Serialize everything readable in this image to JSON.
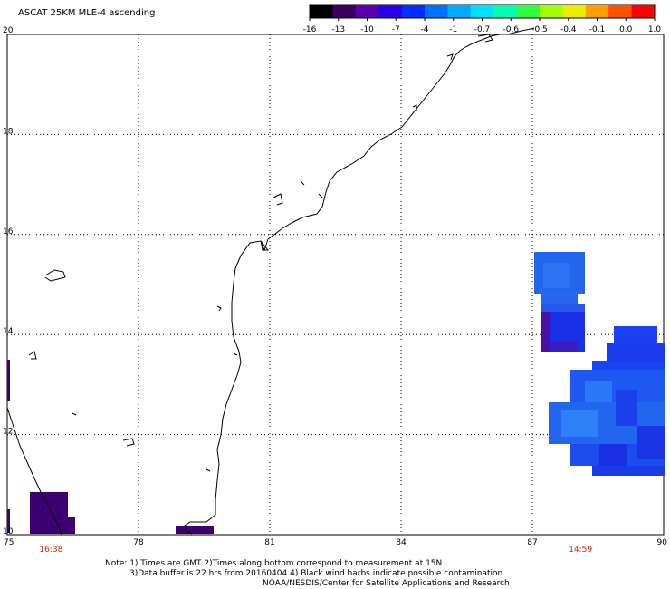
{
  "title": "ASCAT 25KM MLE-4 ascending",
  "colorbar": {
    "labels": [
      "-16",
      "-13",
      "-10",
      "-7",
      "-4",
      "-1",
      "-0.7",
      "-0.6",
      "-0.5",
      "-0.4",
      "-0.1",
      "0.0",
      "1.0"
    ],
    "colors": [
      "#000000",
      "#3a0060",
      "#5a00a8",
      "#2a00e6",
      "#0030ff",
      "#0070ff",
      "#00aaff",
      "#00e0ff",
      "#00ffb0",
      "#30ff40",
      "#a0ff00",
      "#e8f000",
      "#ffa000",
      "#ff5000",
      "#ff0000"
    ]
  },
  "axes": {
    "x_ticks": [
      "75",
      "78",
      "81",
      "84",
      "87",
      "90"
    ],
    "y_ticks": [
      "20",
      "18",
      "16",
      "14",
      "12",
      "10"
    ],
    "lon_range": [
      75,
      90
    ],
    "lat_range": [
      10,
      20
    ]
  },
  "pass_times": [
    {
      "label": "16:38",
      "lon": 76.0
    },
    {
      "label": "14:59",
      "lon": 88.1
    }
  ],
  "notes": {
    "line1": "Note: 1) Times are GMT 2)Times along bottom correspond to measurement at 15N",
    "line2": "3)Data buffer is 22 hrs from 20160404 4) Black wind barbs indicate possible contamination",
    "line3": "NOAA/NESDIS/Center for Satellite Applications and Research"
  }
}
